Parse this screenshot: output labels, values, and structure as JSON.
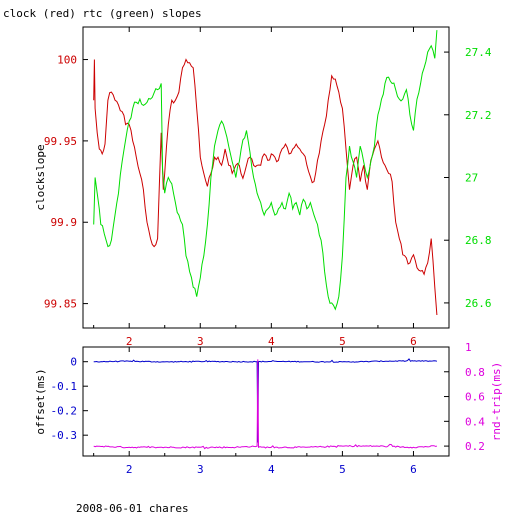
{
  "title": "clock (red) rtc (green) slopes",
  "footer": "2008-06-01 chares",
  "colors": {
    "red": "#cc0000",
    "green": "#00dd00",
    "blue": "#0000cc",
    "magenta": "#dd00dd",
    "axis": "#000000"
  },
  "chart_data": [
    {
      "type": "line",
      "ylabel": "clockslope",
      "xlim": [
        1.35,
        6.5
      ],
      "ylim": [
        99.835,
        100.02
      ],
      "y2lim": [
        26.52,
        27.48
      ],
      "xticks": [
        2,
        3,
        4,
        5,
        6
      ],
      "yticks": [
        99.85,
        99.9,
        99.95,
        100
      ],
      "ytick_labels": [
        "99.85",
        "99.9",
        "99.95",
        "100"
      ],
      "y2ticks": [
        26.6,
        26.8,
        27,
        27.2,
        27.4
      ],
      "y2tick_labels": [
        "26.6",
        "26.8",
        "27",
        "27.2",
        "27.4"
      ],
      "series": [
        {
          "axis": "left",
          "color": "#cc0000",
          "x": [
            1.5,
            1.51,
            1.52,
            1.55,
            1.58,
            1.62,
            1.66,
            1.7,
            1.75,
            1.8,
            1.85,
            1.9,
            1.95,
            2.0,
            2.05,
            2.1,
            2.15,
            2.2,
            2.25,
            2.3,
            2.35,
            2.4,
            2.45,
            2.48,
            2.5,
            2.55,
            2.6,
            2.65,
            2.7,
            2.75,
            2.8,
            2.85,
            2.9,
            2.95,
            3.0,
            3.05,
            3.1,
            3.15,
            3.2,
            3.25,
            3.3,
            3.35,
            3.4,
            3.45,
            3.5,
            3.55,
            3.6,
            3.65,
            3.7,
            3.75,
            3.8,
            3.85,
            3.9,
            3.95,
            4.0,
            4.05,
            4.1,
            4.15,
            4.2,
            4.25,
            4.3,
            4.35,
            4.4,
            4.45,
            4.5,
            4.55,
            4.6,
            4.65,
            4.7,
            4.75,
            4.8,
            4.85,
            4.9,
            4.95,
            5.0,
            5.05,
            5.1,
            5.15,
            5.2,
            5.25,
            5.3,
            5.35,
            5.4,
            5.45,
            5.5,
            5.55,
            5.6,
            5.65,
            5.7,
            5.75,
            5.8,
            5.85,
            5.9,
            5.95,
            6.0,
            6.05,
            6.1,
            6.15,
            6.2,
            6.25,
            6.3,
            6.33
          ],
          "values": [
            99.975,
            100.0,
            99.97,
            99.955,
            99.945,
            99.942,
            99.948,
            99.975,
            99.98,
            99.975,
            99.972,
            99.968,
            99.96,
            99.96,
            99.95,
            99.94,
            99.93,
            99.92,
            99.9,
            99.89,
            99.885,
            99.89,
            99.955,
            99.92,
            99.93,
            99.96,
            99.975,
            99.975,
            99.98,
            99.995,
            100.0,
            99.998,
            99.995,
            99.97,
            99.94,
            99.93,
            99.922,
            99.93,
            99.94,
            99.94,
            99.935,
            99.945,
            99.935,
            99.93,
            99.935,
            99.935,
            99.927,
            99.935,
            99.94,
            99.935,
            99.935,
            99.935,
            99.942,
            99.938,
            99.942,
            99.94,
            99.938,
            99.945,
            99.948,
            99.942,
            99.945,
            99.948,
            99.945,
            99.942,
            99.935,
            99.928,
            99.925,
            99.938,
            99.95,
            99.96,
            99.975,
            99.99,
            99.988,
            99.98,
            99.97,
            99.945,
            99.92,
            99.935,
            99.94,
            99.925,
            99.935,
            99.92,
            99.938,
            99.945,
            99.95,
            99.94,
            99.935,
            99.93,
            99.925,
            99.9,
            99.89,
            99.88,
            99.878,
            99.875,
            99.88,
            99.872,
            99.87,
            99.868,
            99.875,
            99.89,
            99.86,
            99.843
          ]
        },
        {
          "axis": "right",
          "color": "#00dd00",
          "x": [
            1.5,
            1.52,
            1.55,
            1.58,
            1.6,
            1.65,
            1.7,
            1.75,
            1.8,
            1.85,
            1.9,
            1.95,
            2.0,
            2.05,
            2.1,
            2.15,
            2.2,
            2.25,
            2.3,
            2.35,
            2.4,
            2.45,
            2.47,
            2.5,
            2.55,
            2.6,
            2.65,
            2.7,
            2.75,
            2.8,
            2.85,
            2.9,
            2.95,
            3.0,
            3.05,
            3.1,
            3.15,
            3.2,
            3.25,
            3.3,
            3.35,
            3.4,
            3.45,
            3.5,
            3.55,
            3.6,
            3.65,
            3.7,
            3.75,
            3.8,
            3.85,
            3.9,
            3.95,
            4.0,
            4.05,
            4.1,
            4.15,
            4.2,
            4.25,
            4.3,
            4.35,
            4.4,
            4.45,
            4.5,
            4.55,
            4.6,
            4.65,
            4.7,
            4.75,
            4.8,
            4.85,
            4.9,
            4.95,
            5.0,
            5.05,
            5.1,
            5.15,
            5.2,
            5.25,
            5.3,
            5.35,
            5.4,
            5.45,
            5.5,
            5.55,
            5.6,
            5.65,
            5.7,
            5.75,
            5.8,
            5.85,
            5.9,
            5.95,
            6.0,
            6.05,
            6.1,
            6.15,
            6.2,
            6.25,
            6.3,
            6.33
          ],
          "values": [
            26.85,
            27.0,
            26.95,
            26.9,
            26.85,
            26.82,
            26.78,
            26.8,
            26.88,
            26.95,
            27.05,
            27.12,
            27.18,
            27.22,
            27.24,
            27.25,
            27.23,
            27.24,
            27.25,
            27.27,
            27.28,
            27.3,
            27.02,
            26.95,
            27.0,
            26.98,
            26.92,
            26.88,
            26.85,
            26.75,
            26.7,
            26.65,
            26.62,
            26.68,
            26.75,
            26.85,
            27.0,
            27.1,
            27.15,
            27.18,
            27.15,
            27.1,
            27.05,
            27.0,
            27.05,
            27.12,
            27.15,
            27.08,
            27.0,
            26.95,
            26.92,
            26.88,
            26.9,
            26.92,
            26.88,
            26.9,
            26.92,
            26.9,
            26.95,
            26.9,
            26.92,
            26.88,
            26.93,
            26.9,
            26.92,
            26.88,
            26.85,
            26.8,
            26.7,
            26.62,
            26.6,
            26.58,
            26.62,
            26.75,
            27.0,
            27.1,
            27.05,
            27.0,
            27.1,
            27.05,
            27.0,
            27.05,
            27.1,
            27.2,
            27.25,
            27.3,
            27.32,
            27.3,
            27.28,
            27.25,
            27.25,
            27.28,
            27.2,
            27.15,
            27.25,
            27.3,
            27.35,
            27.4,
            27.42,
            27.38,
            27.47
          ]
        }
      ]
    },
    {
      "type": "line",
      "xlabel": "",
      "ylabel": "offset(ms)",
      "y2label": "rnd-trip(ms)",
      "xlim": [
        1.35,
        6.5
      ],
      "ylim": [
        -0.385,
        0.06
      ],
      "y2lim": [
        0.12,
        1.0
      ],
      "xticks": [
        2,
        3,
        4,
        5,
        6
      ],
      "yticks": [
        -0.3,
        -0.2,
        -0.1,
        0
      ],
      "ytick_labels": [
        "-0.3",
        "-0.2",
        "-0.1",
        "0"
      ],
      "y2ticks": [
        0.2,
        0.4,
        0.6,
        0.8,
        1
      ],
      "y2tick_labels": [
        "0.2",
        "0.4",
        "0.6",
        "0.8",
        "1"
      ],
      "series": [
        {
          "axis": "left",
          "color": "#0000cc",
          "noise": 0.004,
          "x": [
            1.5,
            2.0,
            2.5,
            3.0,
            3.5,
            3.8,
            3.81,
            3.82,
            4.0,
            4.5,
            5.0,
            5.3,
            5.5,
            6.0,
            6.33
          ],
          "values": [
            0.0,
            0.002,
            -0.001,
            0.001,
            0.0,
            0.0,
            -0.33,
            0.0,
            0.001,
            0.0,
            -0.001,
            0.0,
            0.002,
            0.003,
            0.002
          ]
        },
        {
          "axis": "right",
          "color": "#dd00dd",
          "noise": 0.006,
          "x": [
            1.5,
            2.0,
            2.5,
            3.0,
            3.5,
            3.8,
            3.81,
            3.82,
            4.0,
            4.5,
            5.0,
            5.5,
            6.0,
            6.33
          ],
          "values": [
            0.2,
            0.19,
            0.19,
            0.19,
            0.19,
            0.2,
            0.9,
            0.19,
            0.19,
            0.19,
            0.2,
            0.2,
            0.19,
            0.2
          ]
        }
      ]
    }
  ]
}
